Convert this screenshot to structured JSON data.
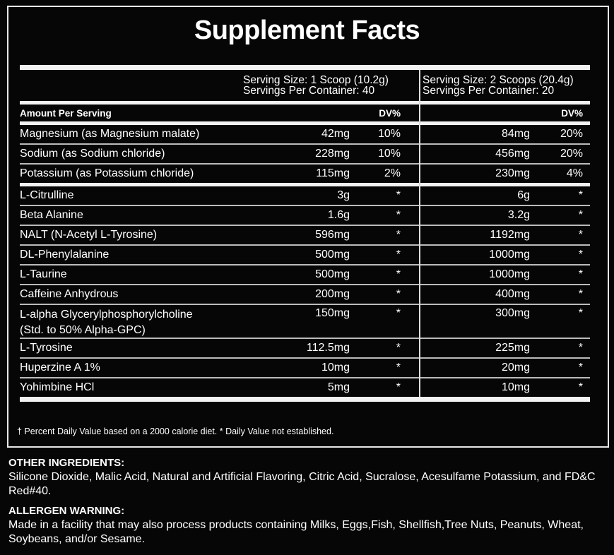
{
  "title": "Supplement Facts",
  "serving": [
    {
      "size": "Serving Size: 1 Scoop (10.2g)",
      "per_container": "Servings Per Container: 40"
    },
    {
      "size": "Serving Size: 2 Scoops (20.4g)",
      "per_container": "Servings Per Container: 20"
    }
  ],
  "header": {
    "amount": "Amount Per Serving",
    "dv1": "DV%",
    "dv2": "DV%"
  },
  "minerals": [
    {
      "name": "Magnesium (as Magnesium malate)",
      "a1": "42mg",
      "d1": "10%",
      "a2": "84mg",
      "d2": "20%"
    },
    {
      "name": "Sodium (as Sodium chloride)",
      "a1": "228mg",
      "d1": "10%",
      "a2": "456mg",
      "d2": "20%"
    },
    {
      "name": "Potassium (as Potassium chloride)",
      "a1": "115mg",
      "d1": "2%",
      "a2": "230mg",
      "d2": "4%"
    }
  ],
  "ingredients": [
    {
      "name": "L-Citrulline",
      "a1": "3g",
      "d1": "*",
      "a2": "6g",
      "d2": "*"
    },
    {
      "name": "Beta Alanine",
      "a1": "1.6g",
      "d1": "*",
      "a2": "3.2g",
      "d2": "*"
    },
    {
      "name": "NALT (N-Acetyl L-Tyrosine)",
      "a1": "596mg",
      "d1": "*",
      "a2": "1192mg",
      "d2": "*"
    },
    {
      "name": "DL-Phenylalanine",
      "a1": "500mg",
      "d1": "*",
      "a2": "1000mg",
      "d2": "*"
    },
    {
      "name": "L-Taurine",
      "a1": "500mg",
      "d1": "*",
      "a2": "1000mg",
      "d2": "*"
    },
    {
      "name": "Caffeine Anhydrous",
      "a1": "200mg",
      "d1": "*",
      "a2": "400mg",
      "d2": "*"
    },
    {
      "name": "L-alpha Glycerylphosphorylcholine",
      "sub": "(Std. to 50% Alpha-GPC)",
      "a1": "150mg",
      "d1": "*",
      "a2": "300mg",
      "d2": "*"
    },
    {
      "name": "L-Tyrosine",
      "a1": "112.5mg",
      "d1": "*",
      "a2": "225mg",
      "d2": "*"
    },
    {
      "name": "Huperzine A 1%",
      "a1": "10mg",
      "d1": "*",
      "a2": "20mg",
      "d2": "*"
    },
    {
      "name": "Yohimbine HCl",
      "a1": "5mg",
      "d1": "*",
      "a2": "10mg",
      "d2": "*"
    }
  ],
  "footnote": "† Percent Daily Value based on a 2000 calorie diet.  * Daily Value not established.",
  "other": {
    "label": "OTHER INGREDIENTS:",
    "text": "Silicone Dioxide, Malic Acid, Natural and Artificial Flavoring, Citric Acid, Sucralose, Acesulfame Potassium, and FD&C Red#40."
  },
  "allergen": {
    "label": "ALLERGEN WARNING:",
    "text": "Made in a facility that may also process products containing Milks, Eggs,Fish, Shellfish,Tree Nuts, Peanuts, Wheat, Soybeans, and/or Sesame."
  }
}
